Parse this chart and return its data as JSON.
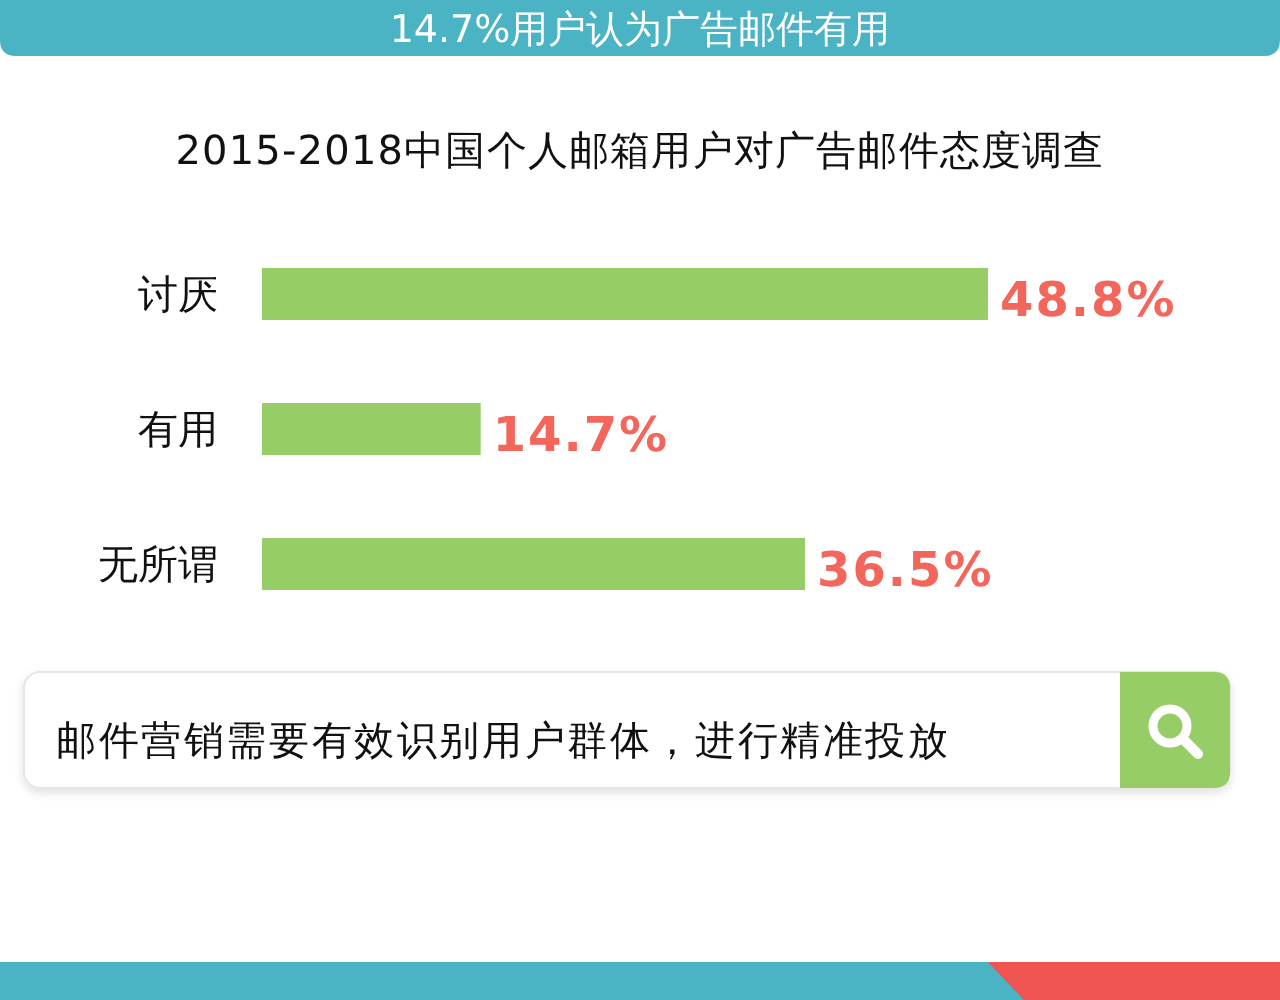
{
  "chart_data": {
    "type": "bar",
    "orientation": "horizontal",
    "title": "2015-2018中国个人邮箱用户对广告邮件态度调查",
    "categories": [
      "讨厌",
      "有用",
      "无所谓"
    ],
    "values": [
      48.8,
      14.7,
      36.5
    ],
    "value_labels": [
      "48.8%",
      "14.7%",
      "36.5%"
    ],
    "color": "#97cd66",
    "tick_labels": "y",
    "annotations": [
      "14.7%用户认为广告邮件有用",
      "邮件营销需要有效识别用户群体，进行精准投放"
    ]
  }
}
